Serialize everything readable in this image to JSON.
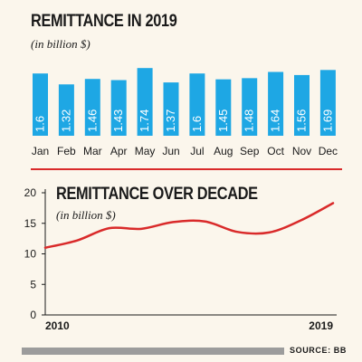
{
  "chart_data": [
    {
      "type": "bar",
      "title": "REMITTANCE IN 2019",
      "subtitle": "(in billion $)",
      "categories": [
        "Jan",
        "Feb",
        "Mar",
        "Apr",
        "May",
        "Jun",
        "Jul",
        "Aug",
        "Sep",
        "Oct",
        "Nov",
        "Dec"
      ],
      "values": [
        1.6,
        1.32,
        1.46,
        1.43,
        1.74,
        1.37,
        1.6,
        1.45,
        1.48,
        1.64,
        1.56,
        1.69
      ],
      "value_labels": [
        "1.6",
        "1.32",
        "1.46",
        "1.43",
        "1.74",
        "1.37",
        "1.6",
        "1.45",
        "1.48",
        "1.64",
        "1.56",
        "1.69"
      ],
      "color": "#1ea7e4",
      "grid": false
    },
    {
      "type": "line",
      "title": "REMITTANCE OVER DECADE",
      "subtitle": "(in billion $)",
      "x": [
        2010,
        2011,
        2012,
        2013,
        2014,
        2015,
        2016,
        2017,
        2018,
        2019
      ],
      "y": [
        11.0,
        12.2,
        14.2,
        14.1,
        15.2,
        15.3,
        13.6,
        13.5,
        15.5,
        18.3
      ],
      "ylim": [
        0,
        20
      ],
      "yticks": [
        "0",
        "5",
        "10",
        "15",
        "20"
      ],
      "xtick_labels": [
        "2010",
        "2019"
      ],
      "color": "#d92a2a",
      "grid": false
    }
  ],
  "source": "SOURCE: BB"
}
